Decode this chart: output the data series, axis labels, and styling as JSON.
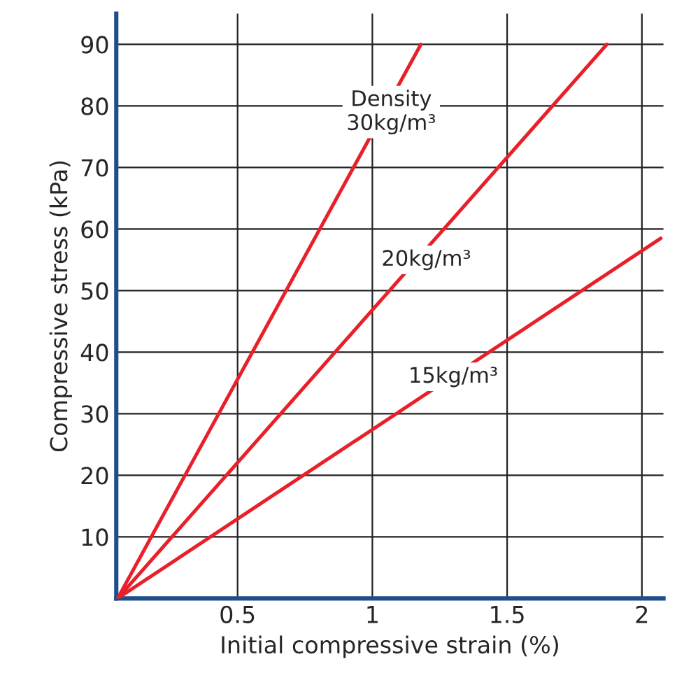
{
  "chart_data": {
    "type": "line",
    "xlabel": "Initial compressive strain (%)",
    "ylabel": "Compressive stress (kPa)",
    "series": [
      {
        "color": "#e8202a",
        "x": [
          0.055,
          1.18
        ],
        "values": [
          0,
          90
        ]
      },
      {
        "color": "#e8202a",
        "x": [
          0.055,
          1.87
        ],
        "values": [
          0,
          90
        ]
      },
      {
        "color": "#e8202a",
        "x": [
          0.055,
          2.07
        ],
        "values": [
          0,
          58.5
        ]
      }
    ],
    "xlim": [
      0.05,
      2.08
    ],
    "ylim": [
      0,
      95
    ],
    "xticks": [
      0.5,
      1,
      1.5,
      2
    ],
    "yticks": [
      10,
      20,
      30,
      40,
      50,
      60,
      70,
      80,
      90
    ],
    "grid": true,
    "marker": "none",
    "line_style": "solid",
    "annotations": [
      {
        "text": "Density\n30kg/m³",
        "x": 1.07,
        "y": 79
      },
      {
        "text": "20kg/m³",
        "x": 1.2,
        "y": 55
      },
      {
        "text": "15kg/m³",
        "x": 1.3,
        "y": 36
      }
    ]
  }
}
